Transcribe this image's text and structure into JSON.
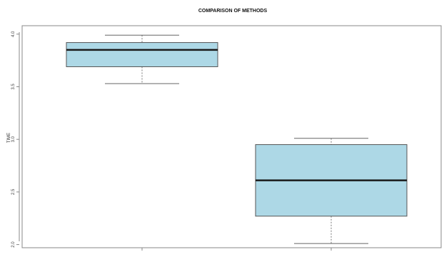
{
  "chart_data": {
    "type": "boxplot",
    "title": "COMPARISON OF METHODS",
    "ylabel": "TIME",
    "xlabel": "",
    "ylim": [
      1.97,
      4.08
    ],
    "yticks": [
      "2.0",
      "2.5",
      "3.0",
      "3.5",
      "4.0"
    ],
    "box_fill": "#add8e6",
    "box_stroke": "#555555",
    "grid": false,
    "series": [
      {
        "category": "",
        "min": 3.53,
        "q1": 3.69,
        "median": 3.85,
        "q3": 3.92,
        "max": 3.99
      },
      {
        "category": "",
        "min": 2.01,
        "q1": 2.27,
        "median": 2.61,
        "q3": 2.95,
        "max": 3.01
      }
    ]
  }
}
